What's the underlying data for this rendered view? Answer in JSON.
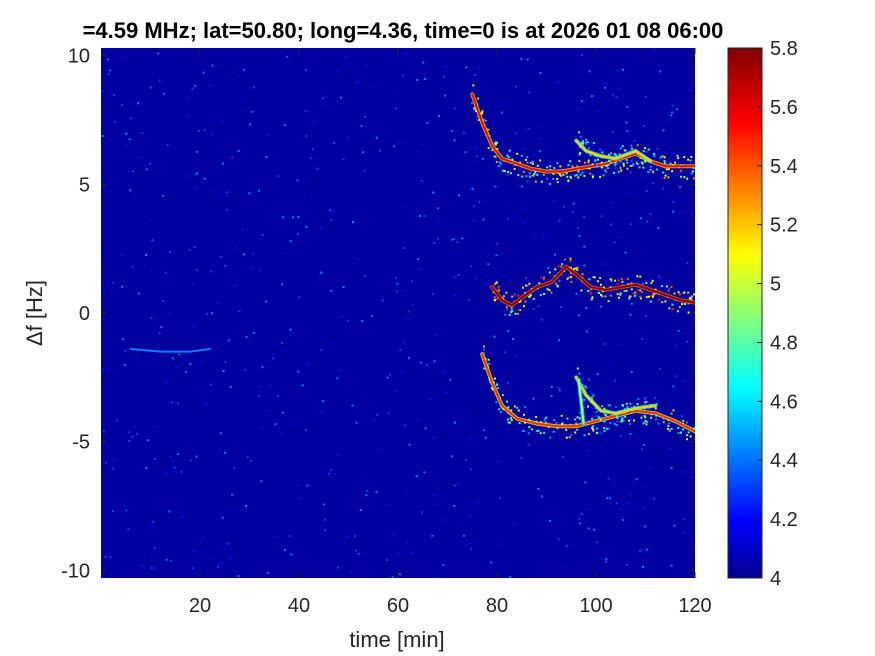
{
  "chart_data": {
    "type": "heatmap",
    "title": "=4.59 MHz;  lat=50.80; long=4.36, time=0 is at 2026 01 08 06:00",
    "xlabel": "time [min]",
    "ylabel": "Δf [Hz]",
    "xlim": [
      0,
      120
    ],
    "ylim": [
      -10.3,
      10.3
    ],
    "xticks": [
      20,
      40,
      60,
      80,
      100,
      120
    ],
    "yticks": [
      10,
      5,
      0,
      -5,
      -10
    ],
    "xtick_labels": [
      "20",
      "40",
      "60",
      "80",
      "100",
      "120"
    ],
    "ytick_labels": [
      "10",
      "5",
      "0",
      "-5",
      "-10"
    ],
    "colorbar": {
      "colormap": "jet",
      "range": [
        4,
        5.8
      ],
      "ticks": [
        4,
        4.2,
        4.4,
        4.6,
        4.8,
        5,
        5.2,
        5.4,
        5.6,
        5.8
      ],
      "tick_labels": [
        "4",
        "4.2",
        "4.4",
        "4.6",
        "4.8",
        "5",
        "5.2",
        "5.4",
        "5.6",
        "5.8"
      ]
    },
    "background_level": 4.05,
    "traces": [
      {
        "band": "upper",
        "points": [
          [
            75,
            8.5
          ],
          [
            77,
            7.4
          ],
          [
            79,
            6.5
          ],
          [
            81,
            6.0
          ],
          [
            84,
            5.8
          ],
          [
            87,
            5.6
          ],
          [
            90,
            5.5
          ],
          [
            93,
            5.5
          ],
          [
            96,
            5.6
          ],
          [
            99,
            5.7
          ],
          [
            102,
            5.8
          ],
          [
            105,
            6.0
          ],
          [
            108,
            6.2
          ],
          [
            111,
            5.9
          ],
          [
            114,
            5.7
          ],
          [
            117,
            5.7
          ],
          [
            120,
            5.7
          ]
        ],
        "level": 5.6
      },
      {
        "band": "upper-secondary",
        "points": [
          [
            96,
            6.7
          ],
          [
            98,
            6.3
          ],
          [
            101,
            6.1
          ],
          [
            104,
            6.0
          ],
          [
            108,
            6.3
          ],
          [
            111,
            5.9
          ]
        ],
        "level": 5.2
      },
      {
        "band": "center",
        "points": [
          [
            79,
            1.0
          ],
          [
            81,
            0.5
          ],
          [
            83,
            0.3
          ],
          [
            85,
            0.6
          ],
          [
            88,
            1.0
          ],
          [
            91,
            1.2
          ],
          [
            94,
            1.8
          ],
          [
            96,
            1.5
          ],
          [
            99,
            1.0
          ],
          [
            102,
            0.9
          ],
          [
            105,
            1.0
          ],
          [
            108,
            1.1
          ],
          [
            111,
            0.9
          ],
          [
            114,
            0.7
          ],
          [
            117,
            0.5
          ],
          [
            120,
            0.4
          ]
        ],
        "level": 5.8
      },
      {
        "band": "lower",
        "points": [
          [
            77,
            -1.6
          ],
          [
            79,
            -2.7
          ],
          [
            81,
            -3.6
          ],
          [
            84,
            -4.1
          ],
          [
            88,
            -4.3
          ],
          [
            92,
            -4.4
          ],
          [
            96,
            -4.4
          ],
          [
            100,
            -4.2
          ],
          [
            104,
            -4.0
          ],
          [
            108,
            -3.8
          ],
          [
            112,
            -3.9
          ],
          [
            116,
            -4.2
          ],
          [
            120,
            -4.6
          ]
        ],
        "level": 5.5
      },
      {
        "band": "lower-secondary",
        "points": [
          [
            96,
            -2.5
          ],
          [
            98,
            -3.2
          ],
          [
            101,
            -3.8
          ],
          [
            104,
            -3.9
          ],
          [
            108,
            -3.7
          ],
          [
            112,
            -3.6
          ]
        ],
        "level": 5.2
      },
      {
        "band": "lower-spike",
        "points": [
          [
            96.5,
            -2.6
          ],
          [
            97.5,
            -4.3
          ]
        ],
        "level": 5.0
      },
      {
        "band": "faint",
        "points": [
          [
            6,
            -1.4
          ],
          [
            12,
            -1.5
          ],
          [
            18,
            -1.5
          ],
          [
            22,
            -1.4
          ]
        ],
        "level": 4.45
      }
    ]
  }
}
